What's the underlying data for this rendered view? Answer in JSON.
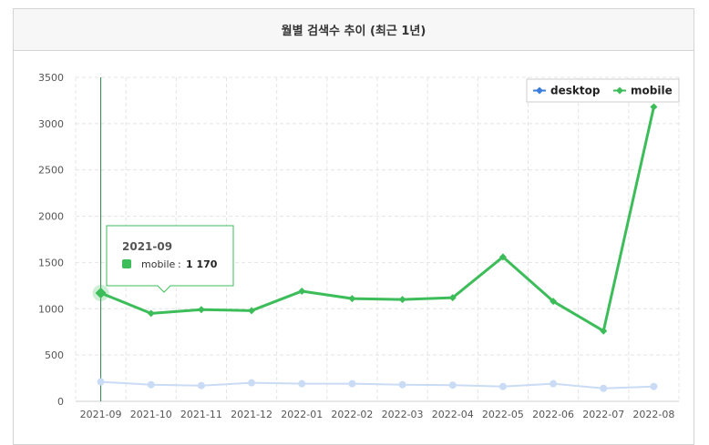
{
  "title": "월별 검색수 추이 (최근 1년)",
  "chart_data": {
    "type": "line",
    "x": [
      "2021-09",
      "2021-10",
      "2021-11",
      "2021-12",
      "2022-01",
      "2022-02",
      "2022-03",
      "2022-04",
      "2022-05",
      "2022-06",
      "2022-07",
      "2022-08"
    ],
    "ylim": [
      0,
      3500
    ],
    "yticks": [
      0,
      500,
      1000,
      1500,
      2000,
      2500,
      3000,
      3500
    ],
    "grid": true,
    "legend_position": "top-right",
    "series": [
      {
        "name": "desktop",
        "color": "#3b7ddd",
        "faded": true,
        "values": [
          210,
          180,
          170,
          200,
          190,
          190,
          180,
          175,
          160,
          190,
          140,
          160
        ]
      },
      {
        "name": "mobile",
        "color": "#3dbd5a",
        "values": [
          1170,
          950,
          990,
          980,
          1190,
          1110,
          1100,
          1120,
          1560,
          1080,
          760,
          3180
        ]
      }
    ],
    "tooltip": {
      "title": "2021-09",
      "series": "mobile",
      "separator": ":",
      "value_text": "1 170"
    },
    "highlight_index": 0
  }
}
